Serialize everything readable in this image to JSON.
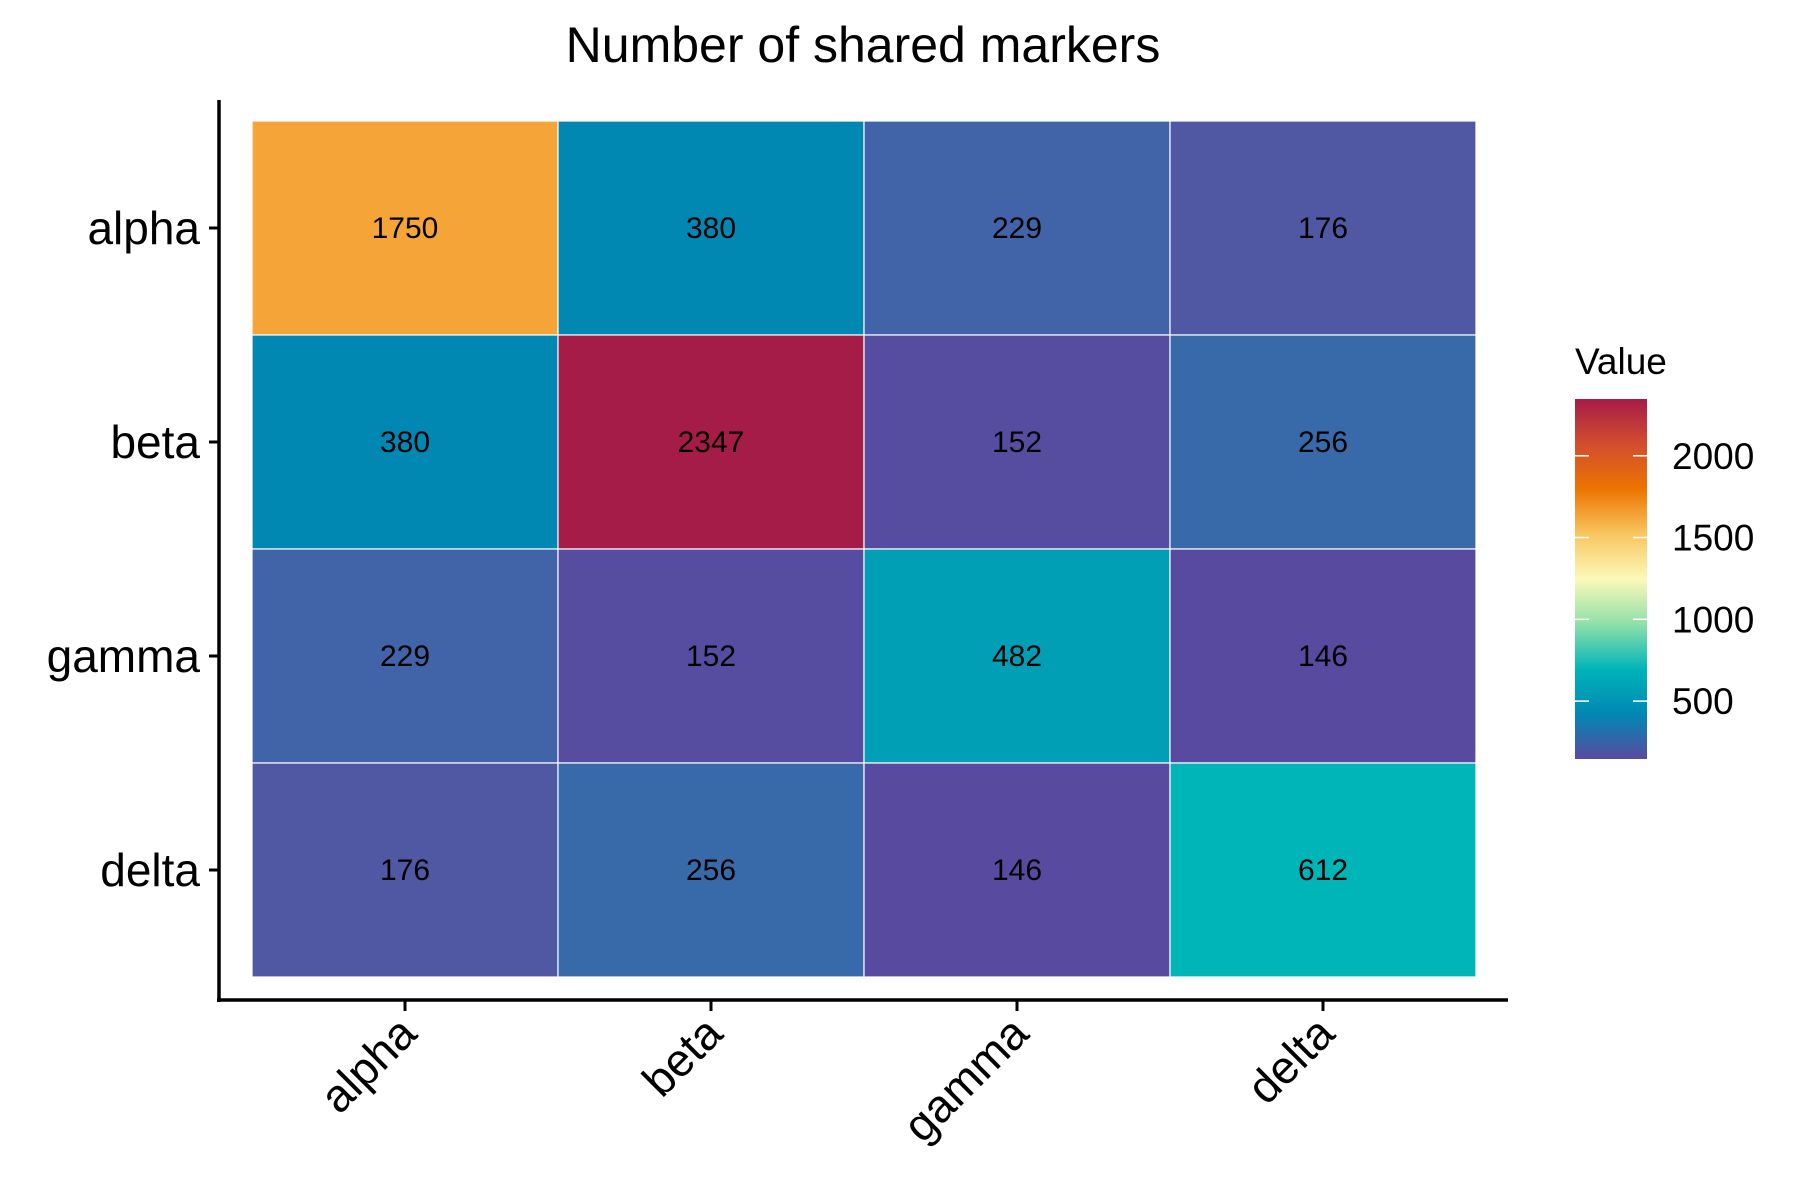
{
  "chart_data": {
    "type": "heatmap",
    "title": "Number of shared markers",
    "xlabel": "",
    "ylabel": "",
    "x_categories": [
      "alpha",
      "beta",
      "gamma",
      "delta"
    ],
    "y_categories": [
      "alpha",
      "beta",
      "gamma",
      "delta"
    ],
    "values": [
      [
        1750,
        380,
        229,
        176
      ],
      [
        380,
        2347,
        152,
        256
      ],
      [
        229,
        152,
        482,
        146
      ],
      [
        176,
        256,
        146,
        612
      ]
    ],
    "cell_colors": [
      [
        "#f5a537",
        "#0088b3",
        "#4163a8",
        "#5057a3"
      ],
      [
        "#0088b3",
        "#a61c48",
        "#574da0",
        "#386aaa"
      ],
      [
        "#4163a8",
        "#574da0",
        "#009fb5",
        "#584a9f"
      ],
      [
        "#5057a3",
        "#386aaa",
        "#584a9f",
        "#00b5b8"
      ]
    ],
    "colorbar": {
      "title": "Value",
      "range": [
        146,
        2347
      ],
      "ticks": [
        500,
        1000,
        1500,
        2000
      ],
      "tick_labels": [
        "500",
        "1000",
        "1500",
        "2000"
      ],
      "palette": [
        "#5a4aa0",
        "#0088b3",
        "#00b5b8",
        "#8fe0a8",
        "#fbf9b9",
        "#f8c660",
        "#ec7400",
        "#d24d2e",
        "#a61c48"
      ]
    },
    "x_tick_rotation_deg": -45,
    "grid": false,
    "legend": "right"
  }
}
